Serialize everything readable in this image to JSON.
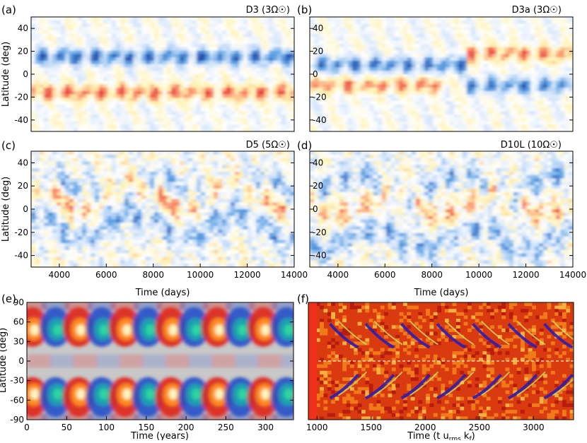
{
  "chart_data": [
    {
      "type": "heatmap",
      "panel_label": "(a)",
      "title": "D3 (3Ω☉)",
      "ylabel": "Latitude (deg)",
      "xlabel": "",
      "xlim": [
        2800,
        14000
      ],
      "ylim": [
        -50,
        50
      ],
      "y_ticks": [
        40,
        20,
        0,
        -20,
        -40
      ],
      "x_ticks": [],
      "bands": [
        {
          "lat": 15,
          "sign": -1,
          "strength": 0.95,
          "start": 2800,
          "end": 14000
        },
        {
          "lat": -16,
          "sign": 1,
          "strength": 0.85,
          "start": 2800,
          "end": 14000
        }
      ]
    },
    {
      "type": "heatmap",
      "panel_label": "(b)",
      "title": "D3a (3Ω☉)",
      "ylabel": "",
      "xlabel": "",
      "xlim": [
        2800,
        14000
      ],
      "ylim": [
        -50,
        50
      ],
      "y_ticks": [
        40,
        20,
        0,
        -20,
        -40
      ],
      "x_ticks": [],
      "bands": [
        {
          "lat": 8,
          "sign": -1,
          "strength": 0.9,
          "start": 2800,
          "end": 9500
        },
        {
          "lat": -10,
          "sign": 1,
          "strength": 0.75,
          "start": 2800,
          "end": 8500
        },
        {
          "lat": 18,
          "sign": 1,
          "strength": 0.8,
          "start": 9500,
          "end": 14000
        },
        {
          "lat": -10,
          "sign": -1,
          "strength": 0.85,
          "start": 9500,
          "end": 14000
        }
      ]
    },
    {
      "type": "heatmap",
      "panel_label": "(c)",
      "title": "D5 (5Ω☉)",
      "ylabel": "Latitude (deg)",
      "xlabel": "Time (days)",
      "xlim": [
        2800,
        14000
      ],
      "ylim": [
        -50,
        50
      ],
      "y_ticks": [
        40,
        20,
        0,
        -20,
        -40
      ],
      "x_ticks": [
        4000,
        6000,
        8000,
        10000,
        12000,
        14000
      ],
      "bands": [
        {
          "lat": 15,
          "sign": -1,
          "strength": 0.6,
          "start": 2800,
          "end": 14000
        },
        {
          "lat": -15,
          "sign": -1,
          "strength": 0.6,
          "start": 2800,
          "end": 14000
        },
        {
          "lat": 10,
          "sign": 1,
          "strength": 0.7,
          "start": 2800,
          "end": 14000
        }
      ]
    },
    {
      "type": "heatmap",
      "panel_label": "(d)",
      "title": "D10L (10Ω☉)",
      "ylabel": "",
      "xlabel": "Time (days)",
      "xlim": [
        2800,
        14000
      ],
      "ylim": [
        -50,
        50
      ],
      "y_ticks": [
        40,
        20,
        0,
        -20,
        -40
      ],
      "x_ticks": [
        4000,
        6000,
        8000,
        10000,
        12000,
        14000
      ],
      "bands": [
        {
          "lat": 20,
          "sign": -1,
          "strength": 0.55,
          "start": 2800,
          "end": 14000
        },
        {
          "lat": -25,
          "sign": -1,
          "strength": 0.6,
          "start": 2800,
          "end": 14000
        },
        {
          "lat": 5,
          "sign": 1,
          "strength": 0.55,
          "start": 2800,
          "end": 14000
        }
      ]
    },
    {
      "type": "heatmap",
      "panel_label": "(e)",
      "title": "",
      "ylabel": "Latitude (deg)",
      "xlabel": "Time (years)",
      "xlim": [
        0,
        335
      ],
      "ylim": [
        -90,
        90
      ],
      "y_ticks": [
        90,
        60,
        30,
        0,
        -30,
        -60,
        -90
      ],
      "x_ticks": [
        0,
        50,
        100,
        150,
        200,
        250,
        300
      ],
      "cycle_period_years": 29,
      "bands": [
        {
          "lat": 53,
          "sign": 1,
          "strength": 1.0,
          "start": 0,
          "end": 335
        },
        {
          "lat": -55,
          "sign": 1,
          "strength": 1.0,
          "start": 0,
          "end": 335
        }
      ]
    },
    {
      "type": "heatmap",
      "panel_label": "(f)",
      "title": "",
      "ylabel": "",
      "xlabel": "Time (t u",
      "xlabel_sub1": "rms",
      "xlabel_mid": " k",
      "xlabel_sub2": "f",
      "xlabel_end": ")",
      "xlim": [
        920,
        3370
      ],
      "ylim": [
        -90,
        90
      ],
      "y_ticks": [
        90,
        60,
        30,
        0,
        -30,
        -60,
        -90
      ],
      "x_ticks": [
        1000,
        1500,
        2000,
        2500,
        3000
      ],
      "bands": [
        {
          "lat": 35,
          "sign": -1,
          "strength": 0.9,
          "start": 920,
          "end": 3370
        },
        {
          "lat": -35,
          "sign": -1,
          "strength": 0.9,
          "start": 920,
          "end": 3370
        }
      ]
    }
  ]
}
